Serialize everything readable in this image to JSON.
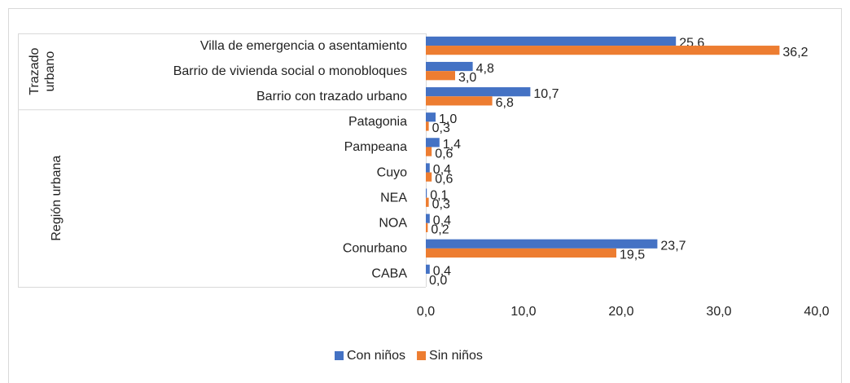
{
  "chart_data": {
    "type": "bar",
    "orientation": "horizontal",
    "groups": [
      {
        "name": "Trazado urbano",
        "categories": [
          "Villa de emergencia o asentamiento",
          "Barrio de vivienda social o monobloques",
          "Barrio con trazado urbano"
        ]
      },
      {
        "name": "Región urbana",
        "categories": [
          "Patagonia",
          "Pampeana",
          "Cuyo",
          "NEA",
          "NOA",
          "Conurbano",
          "CABA"
        ]
      }
    ],
    "series": [
      {
        "name": "Con niños",
        "color": "#4472c4",
        "values": [
          25.6,
          4.8,
          10.7,
          1.0,
          1.4,
          0.4,
          0.1,
          0.4,
          23.7,
          0.4
        ],
        "value_labels": [
          "25,6",
          "4,8",
          "10,7",
          "1,0",
          "1,4",
          "0,4",
          "0,1",
          "0,4",
          "23,7",
          "0,4"
        ]
      },
      {
        "name": "Sin niños",
        "color": "#ed7d31",
        "values": [
          36.2,
          3.0,
          6.8,
          0.3,
          0.6,
          0.6,
          0.3,
          0.2,
          19.5,
          0.0
        ],
        "value_labels": [
          "36,2",
          "3,0",
          "6,8",
          "0,3",
          "0,6",
          "0,6",
          "0,3",
          "0,2",
          "19,5",
          "0,0"
        ]
      }
    ],
    "xlim": [
      0,
      40
    ],
    "xticks": [
      {
        "value": 0,
        "label": "0,0"
      },
      {
        "value": 10,
        "label": "10,0"
      },
      {
        "value": 20,
        "label": "20,0"
      },
      {
        "value": 30,
        "label": "30,0"
      },
      {
        "value": 40,
        "label": "40,0"
      }
    ],
    "grid": false,
    "legend": "bottom"
  }
}
